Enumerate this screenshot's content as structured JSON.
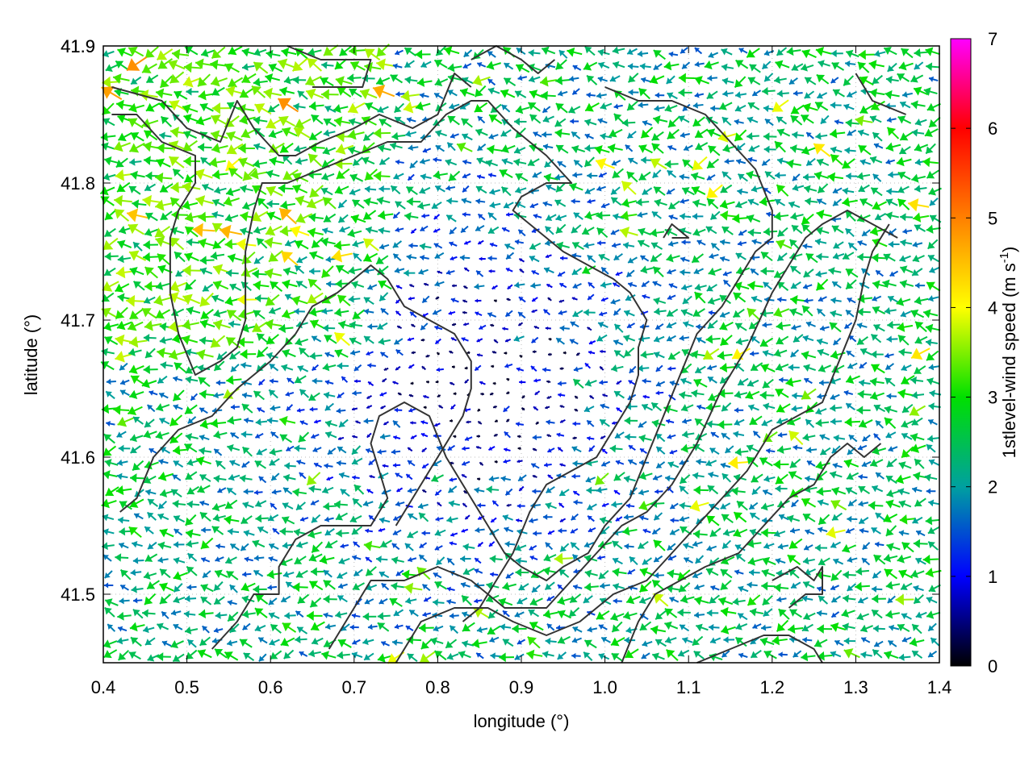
{
  "chart_data": {
    "type": "vector-field",
    "xlabel": "longitude (°)",
    "ylabel": "latitude (°)",
    "xlim": [
      0.4,
      1.4
    ],
    "ylim": [
      41.45,
      41.9
    ],
    "xticks": [
      "0.4",
      "0.5",
      "0.6",
      "0.7",
      "0.8",
      "0.9",
      "1.0",
      "1.1",
      "1.2",
      "1.3",
      "1.4"
    ],
    "yticks": [
      "41.5",
      "41.6",
      "41.7",
      "41.8",
      "41.9"
    ],
    "grid": "dotted",
    "colorbar": {
      "label_prefix": "1stlevel-wind speed (m s",
      "label_sup": "-1",
      "label_suffix": ")",
      "range": [
        0,
        7
      ],
      "ticks": [
        "0",
        "1",
        "2",
        "3",
        "4",
        "5",
        "6",
        "7"
      ],
      "palette": [
        "#000000",
        "#0000ff",
        "#00a0a0",
        "#00e000",
        "#ffff00",
        "#ff8000",
        "#ff0000",
        "#ff00ff"
      ]
    },
    "contour_color": "#333333",
    "contours": [
      [
        [
          0.41,
          41.87
        ],
        [
          0.47,
          41.86
        ],
        [
          0.5,
          41.84
        ],
        [
          0.54,
          41.83
        ],
        [
          0.56,
          41.86
        ],
        [
          0.58,
          41.84
        ],
        [
          0.61,
          41.82
        ],
        [
          0.63,
          41.82
        ],
        [
          0.66,
          41.83
        ],
        [
          0.7,
          41.84
        ],
        [
          0.73,
          41.85
        ],
        [
          0.77,
          41.84
        ],
        [
          0.8,
          41.85
        ],
        [
          0.82,
          41.88
        ],
        [
          0.84,
          41.87
        ]
      ],
      [
        [
          0.41,
          41.85
        ],
        [
          0.44,
          41.85
        ],
        [
          0.47,
          41.83
        ],
        [
          0.51,
          41.82
        ],
        [
          0.51,
          41.8
        ],
        [
          0.5,
          41.79
        ],
        [
          0.49,
          41.78
        ],
        [
          0.48,
          41.76
        ],
        [
          0.48,
          41.74
        ],
        [
          0.48,
          41.72
        ],
        [
          0.49,
          41.69
        ],
        [
          0.51,
          41.66
        ],
        [
          0.54,
          41.67
        ],
        [
          0.56,
          41.68
        ],
        [
          0.57,
          41.7
        ],
        [
          0.57,
          41.72
        ],
        [
          0.57,
          41.75
        ],
        [
          0.58,
          41.78
        ],
        [
          0.59,
          41.8
        ],
        [
          0.62,
          41.8
        ],
        [
          0.66,
          41.81
        ],
        [
          0.7,
          41.82
        ],
        [
          0.74,
          41.83
        ],
        [
          0.78,
          41.83
        ],
        [
          0.81,
          41.85
        ],
        [
          0.84,
          41.86
        ],
        [
          0.86,
          41.86
        ],
        [
          0.89,
          41.84
        ],
        [
          0.93,
          41.82
        ],
        [
          0.96,
          41.8
        ],
        [
          0.93,
          41.8
        ],
        [
          0.9,
          41.79
        ],
        [
          0.89,
          41.78
        ],
        [
          0.91,
          41.77
        ],
        [
          0.95,
          41.75
        ],
        [
          0.98,
          41.74
        ],
        [
          1.01,
          41.73
        ],
        [
          1.03,
          41.72
        ],
        [
          1.05,
          41.7
        ],
        [
          1.04,
          41.68
        ],
        [
          1.04,
          41.66
        ],
        [
          1.03,
          41.64
        ],
        [
          1.01,
          41.62
        ],
        [
          0.99,
          41.6
        ],
        [
          0.96,
          41.59
        ],
        [
          0.93,
          41.58
        ],
        [
          0.91,
          41.56
        ],
        [
          0.89,
          41.53
        ],
        [
          0.87,
          41.51
        ],
        [
          0.85,
          41.49
        ],
        [
          0.83,
          41.48
        ]
      ],
      [
        [
          0.42,
          41.56
        ],
        [
          0.44,
          41.57
        ],
        [
          0.46,
          41.6
        ],
        [
          0.49,
          41.62
        ],
        [
          0.53,
          41.63
        ],
        [
          0.56,
          41.65
        ],
        [
          0.6,
          41.67
        ],
        [
          0.63,
          41.69
        ],
        [
          0.65,
          41.71
        ],
        [
          0.68,
          41.72
        ],
        [
          0.7,
          41.73
        ],
        [
          0.72,
          41.74
        ],
        [
          0.74,
          41.73
        ],
        [
          0.76,
          41.71
        ],
        [
          0.79,
          41.7
        ],
        [
          0.82,
          41.69
        ],
        [
          0.84,
          41.67
        ],
        [
          0.84,
          41.65
        ],
        [
          0.83,
          41.63
        ],
        [
          0.81,
          41.61
        ],
        [
          0.79,
          41.59
        ],
        [
          0.77,
          41.57
        ],
        [
          0.75,
          41.55
        ]
      ],
      [
        [
          0.53,
          41.46
        ],
        [
          0.56,
          41.48
        ],
        [
          0.58,
          41.5
        ],
        [
          0.61,
          41.5
        ],
        [
          0.61,
          41.52
        ],
        [
          0.63,
          41.54
        ],
        [
          0.66,
          41.55
        ],
        [
          0.69,
          41.55
        ],
        [
          0.72,
          41.55
        ],
        [
          0.74,
          41.57
        ],
        [
          0.73,
          41.59
        ],
        [
          0.72,
          41.61
        ],
        [
          0.73,
          41.63
        ],
        [
          0.76,
          41.64
        ],
        [
          0.79,
          41.63
        ],
        [
          0.81,
          41.6
        ],
        [
          0.84,
          41.57
        ],
        [
          0.86,
          41.55
        ],
        [
          0.88,
          41.53
        ],
        [
          0.9,
          41.52
        ],
        [
          0.93,
          41.51
        ],
        [
          0.95,
          41.52
        ],
        [
          0.98,
          41.53
        ],
        [
          1.0,
          41.55
        ],
        [
          1.03,
          41.57
        ],
        [
          1.05,
          41.6
        ],
        [
          1.07,
          41.63
        ],
        [
          1.09,
          41.66
        ],
        [
          1.11,
          41.69
        ],
        [
          1.14,
          41.71
        ],
        [
          1.16,
          41.73
        ],
        [
          1.18,
          41.75
        ],
        [
          1.2,
          41.76
        ],
        [
          1.2,
          41.78
        ],
        [
          1.18,
          41.81
        ],
        [
          1.15,
          41.83
        ],
        [
          1.12,
          41.85
        ],
        [
          1.08,
          41.86
        ],
        [
          1.04,
          41.86
        ],
        [
          1.0,
          41.87
        ]
      ],
      [
        [
          0.67,
          41.46
        ],
        [
          0.7,
          41.49
        ],
        [
          0.72,
          41.51
        ],
        [
          0.76,
          41.51
        ],
        [
          0.8,
          41.52
        ],
        [
          0.84,
          41.51
        ],
        [
          0.88,
          41.49
        ],
        [
          0.93,
          41.49
        ],
        [
          0.96,
          41.51
        ],
        [
          0.99,
          41.53
        ],
        [
          1.02,
          41.55
        ],
        [
          1.05,
          41.56
        ],
        [
          1.08,
          41.58
        ],
        [
          1.11,
          41.61
        ],
        [
          1.14,
          41.65
        ],
        [
          1.17,
          41.68
        ],
        [
          1.2,
          41.72
        ],
        [
          1.22,
          41.74
        ],
        [
          1.24,
          41.76
        ],
        [
          1.26,
          41.77
        ],
        [
          1.29,
          41.78
        ],
        [
          1.32,
          41.77
        ],
        [
          1.35,
          41.76
        ]
      ],
      [
        [
          0.75,
          41.45
        ],
        [
          0.78,
          41.48
        ],
        [
          0.82,
          41.49
        ],
        [
          0.86,
          41.49
        ],
        [
          0.89,
          41.48
        ],
        [
          0.93,
          41.47
        ],
        [
          0.97,
          41.48
        ],
        [
          1.01,
          41.5
        ],
        [
          1.05,
          41.51
        ],
        [
          1.08,
          41.53
        ],
        [
          1.11,
          41.55
        ],
        [
          1.14,
          41.57
        ],
        [
          1.17,
          41.59
        ],
        [
          1.2,
          41.62
        ],
        [
          1.23,
          41.63
        ],
        [
          1.26,
          41.64
        ],
        [
          1.28,
          41.67
        ],
        [
          1.3,
          41.7
        ],
        [
          1.31,
          41.73
        ],
        [
          1.32,
          41.75
        ],
        [
          1.34,
          41.77
        ]
      ],
      [
        [
          1.02,
          41.45
        ],
        [
          1.04,
          41.48
        ],
        [
          1.06,
          41.5
        ],
        [
          1.09,
          41.51
        ],
        [
          1.12,
          41.52
        ],
        [
          1.16,
          41.53
        ],
        [
          1.19,
          41.55
        ],
        [
          1.22,
          41.57
        ],
        [
          1.25,
          41.58
        ],
        [
          1.27,
          41.6
        ],
        [
          1.29,
          41.61
        ],
        [
          1.31,
          41.6
        ],
        [
          1.33,
          41.61
        ]
      ],
      [
        [
          1.11,
          41.45
        ],
        [
          1.15,
          41.46
        ],
        [
          1.19,
          41.47
        ],
        [
          1.22,
          41.47
        ],
        [
          1.25,
          41.46
        ],
        [
          1.26,
          41.45
        ]
      ],
      [
        [
          1.2,
          41.51
        ],
        [
          1.23,
          41.52
        ],
        [
          1.25,
          41.51
        ],
        [
          1.26,
          41.52
        ],
        [
          1.26,
          41.5
        ],
        [
          1.24,
          41.5
        ],
        [
          1.22,
          41.49
        ]
      ],
      [
        [
          0.62,
          41.9
        ],
        [
          0.66,
          41.89
        ],
        [
          0.7,
          41.89
        ],
        [
          0.72,
          41.89
        ],
        [
          0.71,
          41.87
        ],
        [
          0.68,
          41.87
        ],
        [
          0.65,
          41.87
        ]
      ],
      [
        [
          0.84,
          41.89
        ],
        [
          0.87,
          41.9
        ],
        [
          0.9,
          41.89
        ],
        [
          0.92,
          41.88
        ],
        [
          0.94,
          41.89
        ]
      ],
      [
        [
          1.07,
          41.76
        ],
        [
          1.08,
          41.77
        ],
        [
          1.1,
          41.76
        ],
        [
          1.08,
          41.76
        ]
      ],
      [
        [
          1.3,
          41.88
        ],
        [
          1.31,
          41.87
        ],
        [
          1.32,
          41.86
        ],
        [
          1.36,
          41.85
        ]
      ]
    ]
  }
}
